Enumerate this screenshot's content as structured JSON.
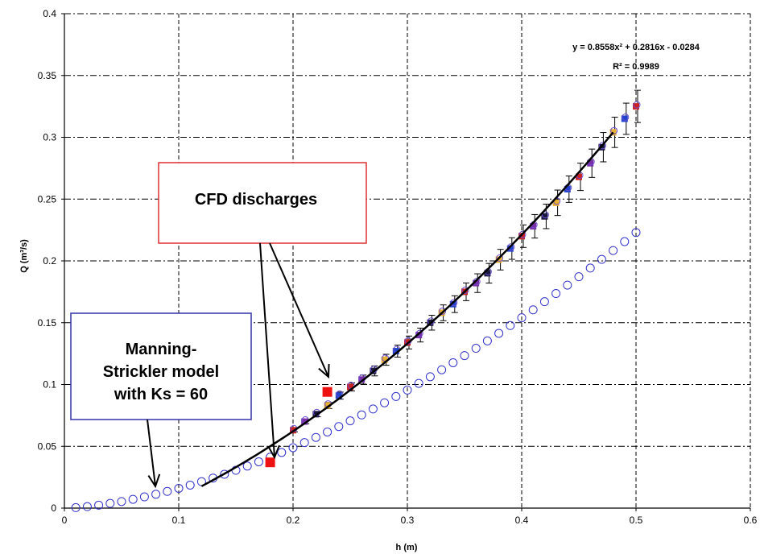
{
  "chart_data": {
    "type": "scatter",
    "xlabel": "h (m)",
    "ylabel": "Q (m³/s)",
    "xlim": [
      0,
      0.6
    ],
    "ylim": [
      0,
      0.4
    ],
    "x_ticks": [
      "0",
      "0.1",
      "0.2",
      "0.3",
      "0.4",
      "0.5",
      "0.6"
    ],
    "y_ticks": [
      "0",
      "0.05",
      "0.1",
      "0.15",
      "0.2",
      "0.25",
      "0.3",
      "0.35",
      "0.4"
    ],
    "grid": true,
    "trendline": {
      "equation": "y = 0.8558x² + 0.2816x - 0.0284",
      "r_squared": "R² = 0.9989",
      "coefficients": [
        0.8558,
        0.2816,
        -0.0284
      ],
      "x_range": [
        0.12,
        0.48
      ]
    },
    "series": [
      {
        "marker": "open-circle",
        "color": "#3333cc",
        "x": [
          0.01,
          0.02,
          0.03,
          0.04,
          0.05,
          0.06,
          0.07,
          0.08,
          0.09,
          0.1,
          0.11,
          0.12,
          0.13,
          0.14,
          0.15,
          0.16,
          0.17,
          0.18,
          0.19,
          0.2,
          0.21,
          0.22,
          0.23,
          0.24,
          0.25,
          0.26,
          0.27,
          0.28,
          0.29,
          0.3,
          0.31,
          0.32,
          0.33,
          0.34,
          0.35,
          0.36,
          0.37,
          0.38,
          0.39,
          0.4,
          0.41,
          0.42,
          0.43,
          0.44,
          0.45,
          0.46,
          0.47,
          0.48,
          0.49,
          0.5
        ],
        "y": [
          0.0004,
          0.0012,
          0.0024,
          0.0038,
          0.0053,
          0.0071,
          0.0091,
          0.0112,
          0.0135,
          0.016,
          0.0186,
          0.0214,
          0.0243,
          0.0274,
          0.0306,
          0.034,
          0.0375,
          0.0412,
          0.045,
          0.0489,
          0.053,
          0.0572,
          0.0616,
          0.066,
          0.0706,
          0.0754,
          0.0802,
          0.0852,
          0.0903,
          0.0955,
          0.1009,
          0.1063,
          0.1119,
          0.1176,
          0.1234,
          0.1293,
          0.1353,
          0.1414,
          0.1477,
          0.154,
          0.1604,
          0.167,
          0.1736,
          0.1804,
          0.1872,
          0.1942,
          0.2012,
          0.2084,
          0.2156,
          0.223
        ]
      },
      {
        "marker": "square",
        "color": "#ee1111",
        "x": [
          0.18,
          0.23
        ],
        "y": [
          0.037,
          0.094
        ]
      },
      {
        "marker": "mixed-measured",
        "color": "#222244",
        "x": [
          0.2,
          0.21,
          0.22,
          0.23,
          0.24,
          0.25,
          0.26,
          0.27,
          0.28,
          0.29,
          0.3,
          0.31,
          0.32,
          0.33,
          0.34,
          0.35,
          0.36,
          0.37,
          0.38,
          0.39,
          0.4,
          0.41,
          0.42,
          0.43,
          0.44,
          0.45,
          0.46,
          0.47,
          0.48,
          0.49,
          0.5
        ],
        "y": [
          0.063,
          0.07,
          0.076,
          0.083,
          0.091,
          0.098,
          0.104,
          0.111,
          0.12,
          0.127,
          0.134,
          0.14,
          0.15,
          0.158,
          0.165,
          0.175,
          0.182,
          0.19,
          0.201,
          0.21,
          0.22,
          0.228,
          0.236,
          0.247,
          0.258,
          0.268,
          0.279,
          0.292,
          0.304,
          0.315,
          0.325
        ]
      }
    ]
  },
  "annotations": {
    "cfd_label": "CFD discharges",
    "manning_lines": [
      "Manning-",
      "Strickler model",
      "with Ks = 60"
    ]
  },
  "colors": {
    "cfd_border": "#e03030",
    "manning_border": "#3333aa",
    "grid": "#000000"
  }
}
